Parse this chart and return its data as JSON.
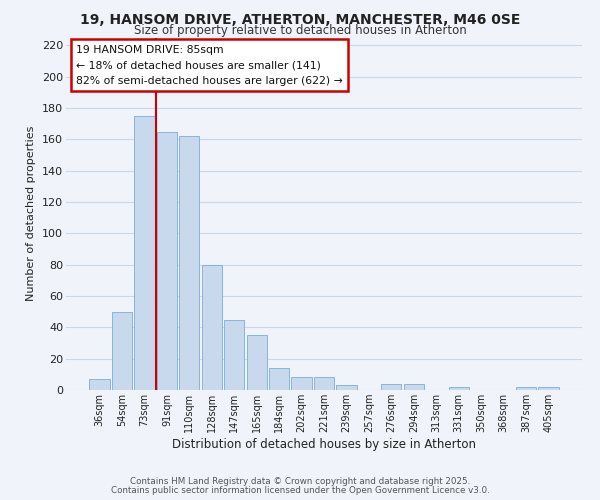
{
  "title": "19, HANSOM DRIVE, ATHERTON, MANCHESTER, M46 0SE",
  "subtitle": "Size of property relative to detached houses in Atherton",
  "xlabel": "Distribution of detached houses by size in Atherton",
  "ylabel": "Number of detached properties",
  "bar_labels": [
    "36sqm",
    "54sqm",
    "73sqm",
    "91sqm",
    "110sqm",
    "128sqm",
    "147sqm",
    "165sqm",
    "184sqm",
    "202sqm",
    "221sqm",
    "239sqm",
    "257sqm",
    "276sqm",
    "294sqm",
    "313sqm",
    "331sqm",
    "350sqm",
    "368sqm",
    "387sqm",
    "405sqm"
  ],
  "bar_values": [
    7,
    50,
    175,
    165,
    162,
    80,
    45,
    35,
    14,
    8,
    8,
    3,
    0,
    4,
    4,
    0,
    2,
    0,
    0,
    2,
    2
  ],
  "bar_color": "#c8d9ee",
  "bar_edge_color": "#7aadd4",
  "marker_line_color": "#cc0000",
  "annotation_lines": [
    "19 HANSOM DRIVE: 85sqm",
    "← 18% of detached houses are smaller (141)",
    "82% of semi-detached houses are larger (622) →"
  ],
  "annotation_box_color": "#ffffff",
  "annotation_box_edge": "#cc0000",
  "ylim": [
    0,
    225
  ],
  "yticks": [
    0,
    20,
    40,
    60,
    80,
    100,
    120,
    140,
    160,
    180,
    200,
    220
  ],
  "footnote1": "Contains HM Land Registry data © Crown copyright and database right 2025.",
  "footnote2": "Contains public sector information licensed under the Open Government Licence v3.0.",
  "background_color": "#f0f4fa",
  "grid_color": "#c8d8ec",
  "title_color": "#222222",
  "subtitle_color": "#333333",
  "footnote_color": "#555555"
}
